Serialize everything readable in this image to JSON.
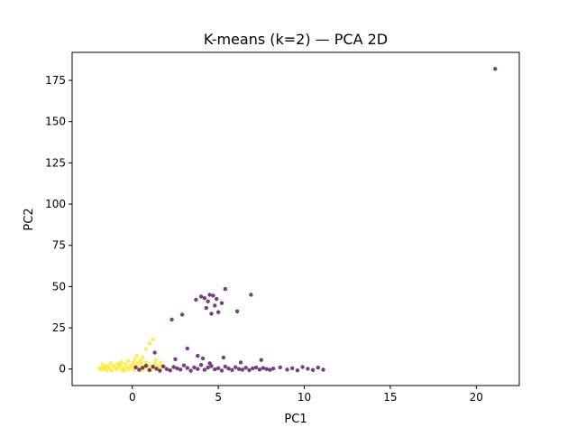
{
  "chart_data": {
    "type": "scatter",
    "title": "K-means (k=2) — PCA 2D",
    "xlabel": "PC1",
    "ylabel": "PC2",
    "xlim": [
      -3.5,
      22.5
    ],
    "ylim": [
      -10,
      192
    ],
    "xticks": [
      0,
      5,
      10,
      15,
      20
    ],
    "yticks": [
      0,
      25,
      50,
      75,
      100,
      125,
      150,
      175
    ],
    "grid": false,
    "series": [
      {
        "color": "#fde725",
        "points": [
          [
            -1.9,
            0.5
          ],
          [
            -1.8,
            -0.4
          ],
          [
            -1.7,
            1.0
          ],
          [
            -1.6,
            0.2
          ],
          [
            -1.5,
            -0.8
          ],
          [
            -1.4,
            1.5
          ],
          [
            -1.3,
            0.0
          ],
          [
            -1.2,
            -1.0
          ],
          [
            -1.1,
            2.0
          ],
          [
            -1.0,
            0.6
          ],
          [
            -0.9,
            -0.3
          ],
          [
            -0.8,
            1.2
          ],
          [
            -0.7,
            2.5
          ],
          [
            -0.6,
            -0.6
          ],
          [
            -0.5,
            0.4
          ],
          [
            -0.4,
            3.0
          ],
          [
            -0.3,
            1.0
          ],
          [
            -0.2,
            -0.2
          ],
          [
            -0.1,
            2.2
          ],
          [
            0.0,
            0.8
          ],
          [
            0.1,
            -0.9
          ],
          [
            0.2,
            1.8
          ],
          [
            0.3,
            3.5
          ],
          [
            0.4,
            0.3
          ],
          [
            0.5,
            2.8
          ],
          [
            0.6,
            -0.5
          ],
          [
            0.7,
            1.4
          ],
          [
            0.8,
            4.0
          ],
          [
            0.9,
            0.2
          ],
          [
            1.0,
            2.4
          ],
          [
            1.1,
            -0.7
          ],
          [
            1.2,
            1.1
          ],
          [
            1.3,
            3.2
          ],
          [
            1.4,
            0.5
          ],
          [
            1.5,
            2.0
          ],
          [
            1.6,
            -0.4
          ],
          [
            1.7,
            1.6
          ],
          [
            -1.75,
            2.8
          ],
          [
            -1.25,
            3.5
          ],
          [
            -0.65,
            4.2
          ],
          [
            -0.25,
            5.0
          ],
          [
            0.15,
            6.0
          ],
          [
            0.45,
            5.2
          ],
          [
            0.25,
            8.0
          ],
          [
            0.6,
            7.2
          ],
          [
            0.8,
            12.0
          ],
          [
            1.0,
            15.5
          ],
          [
            1.2,
            18.0
          ],
          [
            0.05,
            3.8
          ],
          [
            0.55,
            4.6
          ],
          [
            -0.85,
            3.2
          ],
          [
            1.35,
            5.5
          ],
          [
            1.65,
            4.0
          ],
          [
            1.85,
            1.5
          ],
          [
            -1.55,
            1.9
          ],
          [
            -0.45,
            -1.1
          ]
        ]
      },
      {
        "color": "#440154",
        "points": [
          [
            0.2,
            1.0
          ],
          [
            0.4,
            -0.5
          ],
          [
            0.6,
            0.8
          ],
          [
            0.8,
            2.0
          ],
          [
            1.0,
            -0.6
          ],
          [
            1.2,
            1.4
          ],
          [
            1.4,
            0.2
          ],
          [
            1.6,
            -1.0
          ],
          [
            1.8,
            1.6
          ],
          [
            2.0,
            0.0
          ],
          [
            2.2,
            -0.8
          ],
          [
            2.4,
            1.2
          ],
          [
            2.6,
            0.4
          ],
          [
            2.8,
            -0.3
          ],
          [
            3.0,
            2.2
          ],
          [
            3.2,
            0.6
          ],
          [
            3.4,
            -1.0
          ],
          [
            3.6,
            1.0
          ],
          [
            3.8,
            0.0
          ],
          [
            4.0,
            2.5
          ],
          [
            4.2,
            -0.5
          ],
          [
            4.4,
            0.9
          ],
          [
            4.6,
            1.8
          ],
          [
            4.8,
            -0.2
          ],
          [
            5.0,
            0.5
          ],
          [
            5.2,
            -0.9
          ],
          [
            5.4,
            1.5
          ],
          [
            5.6,
            0.3
          ],
          [
            5.8,
            -0.6
          ],
          [
            6.0,
            1.1
          ],
          [
            6.2,
            0.0
          ],
          [
            6.4,
            -0.4
          ],
          [
            6.6,
            0.8
          ],
          [
            6.8,
            -0.7
          ],
          [
            7.0,
            0.4
          ],
          [
            7.2,
            1.0
          ],
          [
            7.4,
            -0.3
          ],
          [
            7.6,
            0.6
          ],
          [
            7.8,
            0.0
          ],
          [
            8.0,
            -0.5
          ],
          [
            8.2,
            0.3
          ],
          [
            8.6,
            1.0
          ],
          [
            9.0,
            -0.3
          ],
          [
            9.3,
            0.5
          ],
          [
            9.6,
            -0.8
          ],
          [
            9.9,
            1.2
          ],
          [
            10.2,
            0.2
          ],
          [
            10.5,
            -0.6
          ],
          [
            10.8,
            0.9
          ],
          [
            11.1,
            -0.4
          ],
          [
            1.3,
            10.0
          ],
          [
            2.5,
            6.0
          ],
          [
            3.2,
            12.5
          ],
          [
            3.8,
            8.0
          ],
          [
            4.1,
            6.5
          ],
          [
            4.5,
            3.5
          ],
          [
            5.3,
            7.0
          ],
          [
            6.3,
            4.0
          ],
          [
            7.5,
            5.5
          ],
          [
            2.3,
            30.0
          ],
          [
            2.9,
            33.0
          ],
          [
            3.7,
            42.0
          ],
          [
            4.0,
            44.0
          ],
          [
            4.2,
            43.0
          ],
          [
            4.4,
            41.0
          ],
          [
            4.5,
            45.0
          ],
          [
            4.7,
            44.5
          ],
          [
            4.9,
            42.5
          ],
          [
            4.3,
            37.0
          ],
          [
            4.8,
            38.5
          ],
          [
            5.0,
            34.5
          ],
          [
            5.2,
            40.0
          ],
          [
            5.4,
            48.5
          ],
          [
            6.1,
            35.0
          ],
          [
            6.9,
            45.0
          ],
          [
            4.6,
            33.5
          ],
          [
            21.1,
            182.0
          ]
        ]
      }
    ]
  }
}
